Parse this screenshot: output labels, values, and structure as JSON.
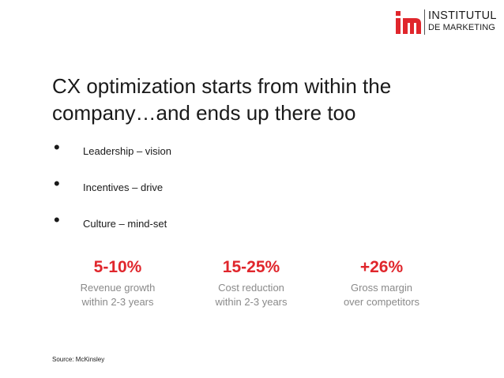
{
  "logo": {
    "line1": "INSTITUTUL",
    "line2": "DE MARKETING",
    "mark_letters": "im",
    "mark_color": "#e0262c"
  },
  "title": "CX optimization starts from within the company…and ends up there too",
  "bullets": [
    {
      "symbol": "•",
      "text": "Leadership – vision"
    },
    {
      "symbol": "•",
      "text": "Incentives – drive"
    },
    {
      "symbol": "•",
      "text": "Culture – mind-set"
    }
  ],
  "stats": [
    {
      "value": "5-10%",
      "line1": "Revenue growth",
      "line2": "within 2-3 years"
    },
    {
      "value": "15-25%",
      "line1": "Cost reduction",
      "line2": "within 2-3 years"
    },
    {
      "value": "+26%",
      "line1": "Gross margin",
      "line2": "over competitors"
    }
  ],
  "source": "Source: McKinsley",
  "colors": {
    "accent": "#e0262c",
    "text": "#1a1a1a",
    "muted": "#8a8a8a"
  }
}
